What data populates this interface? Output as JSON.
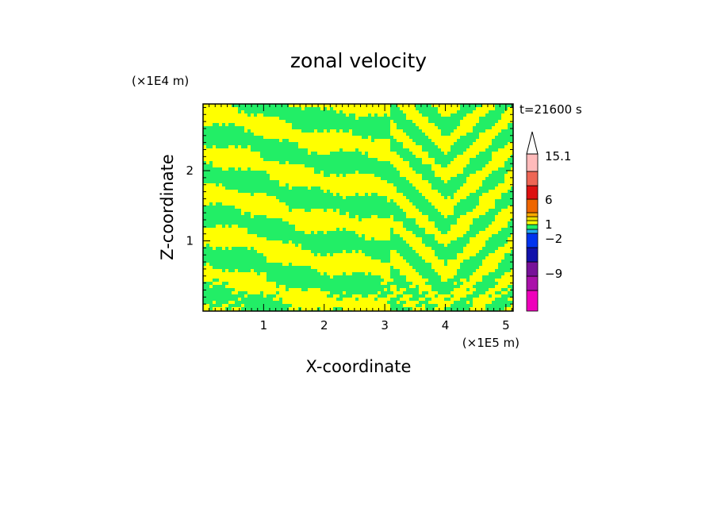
{
  "chart_data": {
    "type": "heatmap",
    "title": "zonal velocity",
    "xlabel": "X-coordinate",
    "ylabel": "Z-coordinate",
    "x_unit": "(×1E5 m)",
    "y_unit": "(×1E4 m)",
    "time_label": "t=21600 s",
    "xlim": [
      0,
      5.12
    ],
    "ylim": [
      0,
      2.95
    ],
    "x_ticks": [
      1,
      2,
      3,
      4,
      5
    ],
    "y_ticks": [
      1,
      2
    ],
    "x_tick_labels": [
      "1",
      "2",
      "3",
      "4",
      "5"
    ],
    "y_tick_labels": [
      "1",
      "2"
    ],
    "grid": false,
    "field": {
      "dominant_levels": [
        "-2 to 0 (green)",
        "0 to 1 (yellow)"
      ],
      "colors": [
        "#22ee66",
        "#ffff00"
      ]
    },
    "colorbar": {
      "labels": [
        "15.1",
        "6",
        "1",
        "−2",
        "−9"
      ],
      "levels_bottom_to_top": [
        {
          "color": "#ee00bb"
        },
        {
          "color": "#aa11aa"
        },
        {
          "color": "#771199"
        },
        {
          "color": "#1111aa"
        },
        {
          "color": "#0033ee"
        },
        {
          "color": "#22aaee"
        },
        {
          "color": "#22ee66"
        },
        {
          "color": "#ffff00"
        },
        {
          "color": "#eedd00"
        },
        {
          "color": "#ffaa00"
        },
        {
          "color": "#ee6600"
        },
        {
          "color": "#dd1111"
        },
        {
          "color": "#ee6655"
        },
        {
          "color": "#ffbbbb"
        }
      ],
      "overflow_color": "#ffffff"
    }
  }
}
